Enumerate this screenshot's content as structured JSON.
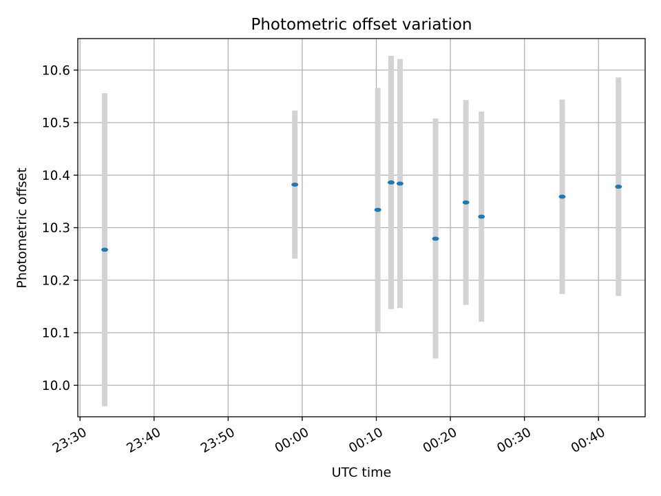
{
  "chart_data": {
    "type": "scatter",
    "title": "Photometric offset variation",
    "xlabel": "UTC time",
    "ylabel": "Photometric offset",
    "x_ticks": [
      {
        "t": "23:30",
        "min": -30
      },
      {
        "t": "23:40",
        "min": -20
      },
      {
        "t": "23:50",
        "min": -10
      },
      {
        "t": "00:00",
        "min": 0
      },
      {
        "t": "00:10",
        "min": 10
      },
      {
        "t": "00:20",
        "min": 20
      },
      {
        "t": "00:30",
        "min": 30
      },
      {
        "t": "00:40",
        "min": 40
      }
    ],
    "y_ticks": [
      "10.0",
      "10.1",
      "10.2",
      "10.3",
      "10.4",
      "10.5",
      "10.6"
    ],
    "xlim_minutes_from_midnight": [
      -30.3,
      46.3
    ],
    "ylim": [
      9.94,
      10.66
    ],
    "grid": true,
    "series": [
      {
        "marker_color": "#1f77b4",
        "errorbar_color": "#d3d3d3",
        "points": [
          {
            "time": "23:33:20",
            "min": -26.67,
            "y": 10.258,
            "lo": 9.96,
            "hi": 10.556
          },
          {
            "time": "23:59:00",
            "min": -1.0,
            "y": 10.382,
            "lo": 10.241,
            "hi": 10.523
          },
          {
            "time": "00:10:12",
            "min": 10.2,
            "y": 10.334,
            "lo": 10.102,
            "hi": 10.566
          },
          {
            "time": "00:12:00",
            "min": 12.0,
            "y": 10.386,
            "lo": 10.145,
            "hi": 10.627
          },
          {
            "time": "00:13:12",
            "min": 13.2,
            "y": 10.384,
            "lo": 10.147,
            "hi": 10.621
          },
          {
            "time": "00:18:00",
            "min": 18.0,
            "y": 10.279,
            "lo": 10.051,
            "hi": 10.508
          },
          {
            "time": "00:22:06",
            "min": 22.1,
            "y": 10.348,
            "lo": 10.153,
            "hi": 10.543
          },
          {
            "time": "00:24:12",
            "min": 24.2,
            "y": 10.321,
            "lo": 10.121,
            "hi": 10.521
          },
          {
            "time": "00:35:06",
            "min": 35.1,
            "y": 10.359,
            "lo": 10.174,
            "hi": 10.544
          },
          {
            "time": "00:42:42",
            "min": 42.7,
            "y": 10.378,
            "lo": 10.17,
            "hi": 10.586
          }
        ]
      }
    ]
  }
}
